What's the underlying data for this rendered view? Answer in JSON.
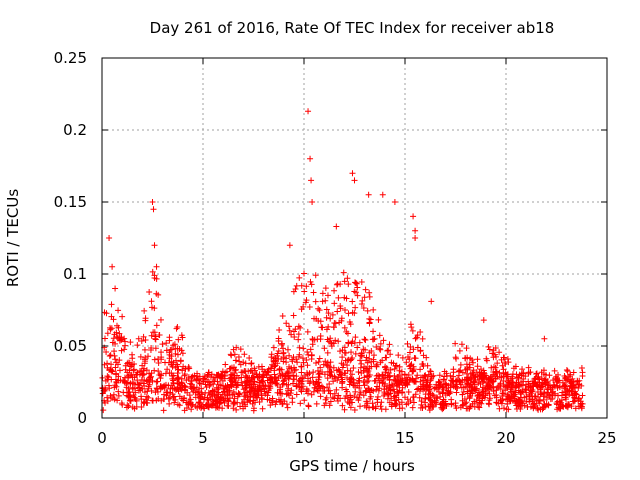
{
  "chart_data": {
    "type": "scatter",
    "title": "Day 261 of 2016, Rate Of TEC Index for receiver ab18",
    "xlabel": "GPS time / hours",
    "ylabel": "ROTI / TECUs",
    "xlim": [
      0,
      25
    ],
    "ylim": [
      0,
      0.25
    ],
    "x_ticks": [
      0,
      5,
      10,
      15,
      20,
      25
    ],
    "y_ticks": [
      0,
      0.05,
      0.1,
      0.15,
      0.2,
      0.25
    ],
    "x_tick_labels": [
      "0",
      "5",
      "10",
      "15",
      "20",
      "25"
    ],
    "y_tick_labels": [
      "0",
      "0.05",
      "0.1",
      "0.15",
      "0.2",
      "0.25"
    ],
    "grid": true,
    "marker": "+",
    "series": [
      {
        "name": "ROTI",
        "color": "#ff0000",
        "x_range": [
          0.0,
          23.8
        ],
        "approx_baseline": [
          0.005,
          0.03
        ],
        "notable_points": [
          {
            "x": 0.35,
            "y": 0.125
          },
          {
            "x": 0.5,
            "y": 0.105
          },
          {
            "x": 2.5,
            "y": 0.15
          },
          {
            "x": 2.55,
            "y": 0.145
          },
          {
            "x": 2.6,
            "y": 0.12
          },
          {
            "x": 2.7,
            "y": 0.105
          },
          {
            "x": 9.3,
            "y": 0.12
          },
          {
            "x": 10.2,
            "y": 0.213
          },
          {
            "x": 10.3,
            "y": 0.18
          },
          {
            "x": 10.35,
            "y": 0.165
          },
          {
            "x": 10.4,
            "y": 0.15
          },
          {
            "x": 11.6,
            "y": 0.133
          },
          {
            "x": 12.4,
            "y": 0.17
          },
          {
            "x": 12.5,
            "y": 0.165
          },
          {
            "x": 13.2,
            "y": 0.155
          },
          {
            "x": 13.9,
            "y": 0.155
          },
          {
            "x": 14.5,
            "y": 0.15
          },
          {
            "x": 15.4,
            "y": 0.14
          },
          {
            "x": 15.5,
            "y": 0.13
          },
          {
            "x": 15.5,
            "y": 0.125
          },
          {
            "x": 16.3,
            "y": 0.081
          },
          {
            "x": 18.9,
            "y": 0.068
          },
          {
            "x": 21.9,
            "y": 0.055
          }
        ]
      }
    ]
  }
}
